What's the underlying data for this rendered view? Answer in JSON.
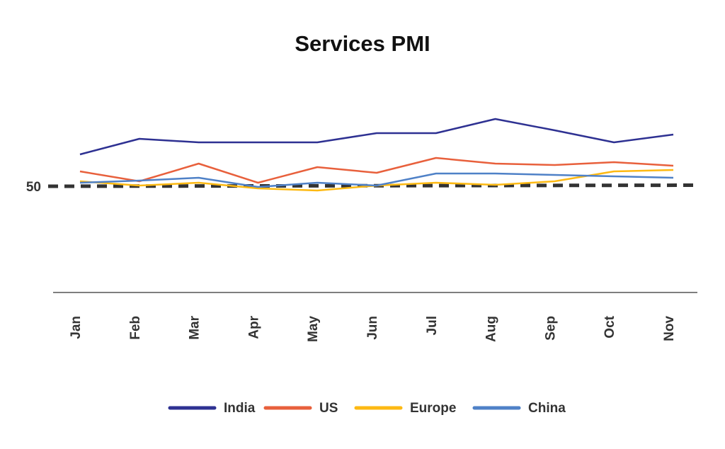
{
  "chart_data": {
    "type": "line",
    "title": "Services PMI",
    "xlabel": "",
    "ylabel": "",
    "categories": [
      "Jan",
      "Feb",
      "Mar",
      "Apr",
      "May",
      "Jun",
      "Jul",
      "Aug",
      "Sep",
      "Oct",
      "Nov"
    ],
    "ylim": [
      35,
      65
    ],
    "y_ticks": [
      50
    ],
    "y_tick_labels": [
      "50"
    ],
    "reference_line": {
      "value": 50,
      "style": "dashed",
      "color": "#333333"
    },
    "grid": false,
    "legend_position": "bottom",
    "series": [
      {
        "name": "India",
        "color": "#2E3192",
        "values": [
          54.5,
          56.7,
          56.2,
          56.2,
          56.2,
          57.5,
          57.5,
          59.5,
          57.9,
          56.2,
          57.3
        ]
      },
      {
        "name": "US",
        "color": "#E8603C",
        "values": [
          52.1,
          50.7,
          53.2,
          50.5,
          52.7,
          51.9,
          54.0,
          53.2,
          53.0,
          53.4,
          52.9
        ]
      },
      {
        "name": "Europe",
        "color": "#FDB913",
        "values": [
          50.7,
          50.1,
          50.5,
          49.7,
          49.4,
          50.1,
          50.5,
          50.2,
          50.7,
          52.1,
          52.3
        ]
      },
      {
        "name": "China",
        "color": "#4F81C7",
        "values": [
          50.5,
          50.8,
          51.2,
          49.9,
          50.5,
          50.1,
          51.8,
          51.8,
          51.6,
          51.4,
          51.2
        ]
      }
    ]
  }
}
